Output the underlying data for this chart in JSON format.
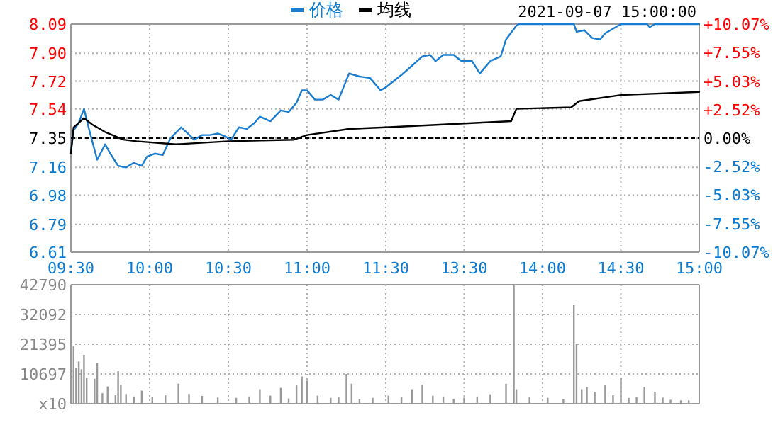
{
  "chart_data": [
    {
      "type": "line",
      "legend": "top",
      "grid": true,
      "xlim": [
        9.5,
        11.5
      ],
      "xticks": [
        {
          "value": 9.5,
          "label": "09:30"
        },
        {
          "value": 10,
          "label": "10:00"
        },
        {
          "value": 10.5,
          "label": "10:30"
        },
        {
          "value": 11,
          "label": "11:00"
        },
        {
          "value": 11.5,
          "label": "11:30"
        }
      ],
      "ylim": [
        6.61,
        8.09
      ],
      "yticks": [
        6.61,
        6.79,
        6.98,
        7.16,
        7.35,
        7.54,
        7.72,
        {
          "value": 7.9,
          "label": "7.90"
        },
        8.09
      ],
      "ref_lines": [
        {
          "axis": "y",
          "value": 7.35,
          "color": "#000000",
          "line_style": "dashed"
        }
      ],
      "series": [
        {
          "name": "价格",
          "color": "#1a7dd0",
          "x": [
            9.5,
            9.517,
            9.55,
            9.583,
            9.617,
            9.667,
            9.717,
            9.75,
            9.8,
            9.85,
            9.9,
            9.95,
            9.983,
            10.033,
            10.083,
            10.133,
            10.2,
            10.233,
            10.283,
            10.333,
            10.383,
            10.433,
            10.483,
            10.517,
            10.567,
            10.617,
            10.667,
            10.7,
            10.767,
            10.833,
            10.883,
            10.933,
            10.967,
            11,
            11.05,
            11.1,
            11.15,
            11.2,
            11.267,
            11.333,
            11.4,
            11.467,
            11.5
          ],
          "values": [
            7.27,
            7.4,
            7.45,
            7.54,
            7.4,
            7.21,
            7.31,
            7.25,
            7.17,
            7.16,
            7.19,
            7.17,
            7.23,
            7.25,
            7.24,
            7.35,
            7.42,
            7.39,
            7.34,
            7.37,
            7.37,
            7.38,
            7.36,
            7.34,
            7.42,
            7.41,
            7.45,
            7.49,
            7.46,
            7.53,
            7.52,
            7.58,
            7.66,
            7.66,
            7.6,
            7.6,
            7.63,
            7.6,
            7.77,
            7.75,
            7.74,
            7.66,
            7.68
          ]
        },
        {
          "name": "均线",
          "color": "#000000",
          "x": [
            9.5,
            9.517,
            9.583,
            9.633,
            9.717,
            9.833,
            9.917,
            10.167,
            10.5,
            10.917,
            11,
            11.267,
            11.5
          ],
          "values": [
            7.25,
            7.42,
            7.48,
            7.44,
            7.39,
            7.34,
            7.33,
            7.31,
            7.33,
            7.34,
            7.37,
            7.41,
            7.42
          ]
        }
      ]
    },
    {
      "type": "line",
      "title": "2021-09-07 15:00:00",
      "tick_labels": "x",
      "grid": true,
      "xlim": [
        13,
        15
      ],
      "xticks": [
        {
          "value": 13.5,
          "label": "13:30"
        },
        {
          "value": 14,
          "label": "14:00"
        },
        {
          "value": 14.5,
          "label": "14:30"
        },
        {
          "value": 15,
          "label": "15:00"
        }
      ],
      "ylim": [
        6.61,
        8.09
      ],
      "yticks": [
        {
          "value": 6.61,
          "label": null
        },
        {
          "value": 6.79,
          "label": null
        },
        {
          "value": 6.98,
          "label": null
        },
        {
          "value": 7.16,
          "label": null
        },
        {
          "value": 7.35,
          "label": null
        },
        {
          "value": 7.54,
          "label": null
        },
        {
          "value": 7.72,
          "label": null
        },
        {
          "value": 7.9,
          "label": null
        },
        {
          "value": 8.09,
          "label": null
        }
      ],
      "y2lim": [
        -10.07,
        10.07
      ],
      "y2ticks": [
        {
          "value": -10.07,
          "label": "-10.07%"
        },
        {
          "value": -7.55,
          "label": "-7.55%"
        },
        {
          "value": -5.03,
          "label": "-5.03%"
        },
        {
          "value": -2.52,
          "label": "-2.52%"
        },
        {
          "value": 0,
          "label": "0.00%"
        },
        {
          "value": 2.52,
          "label": "+2.52%"
        },
        {
          "value": 5.03,
          "label": "+5.03%"
        },
        {
          "value": 7.55,
          "label": "+7.55%"
        },
        {
          "value": 10.07,
          "label": "+10.07%"
        }
      ],
      "ref_lines": [
        {
          "axis": "y",
          "value": 7.35,
          "color": "#000000",
          "line_style": "dashed"
        }
      ],
      "series": [
        {
          "color": "#1a7dd0",
          "x": [
            13,
            13.1,
            13.167,
            13.233,
            13.283,
            13.317,
            13.367,
            13.433,
            13.483,
            13.55,
            13.6,
            13.667,
            13.733,
            13.767,
            13.833,
            13.85,
            14.2,
            14.217,
            14.267,
            14.317,
            14.367,
            14.4,
            14.5,
            14.667,
            14.683,
            14.717,
            15
          ],
          "values": [
            7.68,
            7.76,
            7.82,
            7.88,
            7.89,
            7.85,
            7.89,
            7.89,
            7.85,
            7.85,
            7.77,
            7.85,
            7.88,
            7.99,
            8.08,
            8.09,
            8.09,
            8.04,
            8.05,
            8.0,
            7.99,
            8.03,
            8.09,
            8.09,
            8.07,
            8.09,
            8.09
          ]
        },
        {
          "color": "#000000",
          "x": [
            13,
            13.8,
            13.833,
            14.183,
            14.233,
            14.5,
            15
          ],
          "values": [
            7.42,
            7.46,
            7.54,
            7.55,
            7.59,
            7.63,
            7.65
          ]
        }
      ]
    },
    {
      "type": "bar",
      "tick_labels": "y",
      "grid": true,
      "xlim": [
        9.5,
        11.5
      ],
      "ylim": [
        0,
        42790
      ],
      "yticks": [
        {
          "value": 0,
          "label": "x10"
        },
        10697,
        21395,
        32092,
        42790
      ],
      "color": "#999999",
      "x": [
        9.517,
        9.533,
        9.55,
        9.567,
        9.583,
        9.6,
        9.65,
        9.667,
        9.7,
        9.733,
        9.783,
        9.8,
        9.817,
        9.85,
        9.9,
        9.95,
        10.017,
        10.1,
        10.183,
        10.25,
        10.333,
        10.433,
        10.55,
        10.633,
        10.7,
        10.767,
        10.833,
        10.883,
        10.933,
        10.967,
        11,
        11.067,
        11.15,
        11.2,
        11.25,
        11.283,
        11.333,
        11.417
      ],
      "values": [
        20700,
        12900,
        15200,
        12400,
        17600,
        9300,
        9000,
        14500,
        3800,
        6200,
        3100,
        11700,
        6900,
        3500,
        2600,
        4700,
        2400,
        3000,
        7200,
        3500,
        2800,
        2200,
        2100,
        2600,
        5200,
        2900,
        5700,
        1900,
        6600,
        9800,
        8300,
        2900,
        2100,
        2400,
        10700,
        7200,
        1700,
        2100
      ]
    },
    {
      "type": "bar",
      "tick_labels": false,
      "grid": true,
      "xlim": [
        13,
        15
      ],
      "ylim": [
        0,
        42790
      ],
      "yticks": [
        {
          "value": 0,
          "label": null
        },
        {
          "value": 10697,
          "label": null
        },
        {
          "value": 21395,
          "label": null
        },
        {
          "value": 32092,
          "label": null
        },
        {
          "value": 42790,
          "label": null
        }
      ],
      "color": "#999999",
      "x": [
        13.017,
        13.1,
        13.167,
        13.233,
        13.3,
        13.367,
        13.433,
        13.5,
        13.583,
        13.667,
        13.767,
        13.817,
        13.833,
        13.917,
        14.033,
        14.133,
        14.2,
        14.217,
        14.25,
        14.283,
        14.333,
        14.4,
        14.45,
        14.5,
        14.55,
        14.6,
        14.65,
        14.717,
        14.767,
        14.817,
        14.883,
        14.933
      ],
      "values": [
        2900,
        2400,
        5200,
        6900,
        2900,
        2600,
        1700,
        2200,
        2600,
        3400,
        7200,
        42790,
        5200,
        2400,
        2100,
        1700,
        35400,
        21600,
        5200,
        6000,
        4300,
        6600,
        3100,
        9300,
        2100,
        2400,
        6000,
        4300,
        2200,
        1400,
        1200,
        1200
      ]
    }
  ]
}
